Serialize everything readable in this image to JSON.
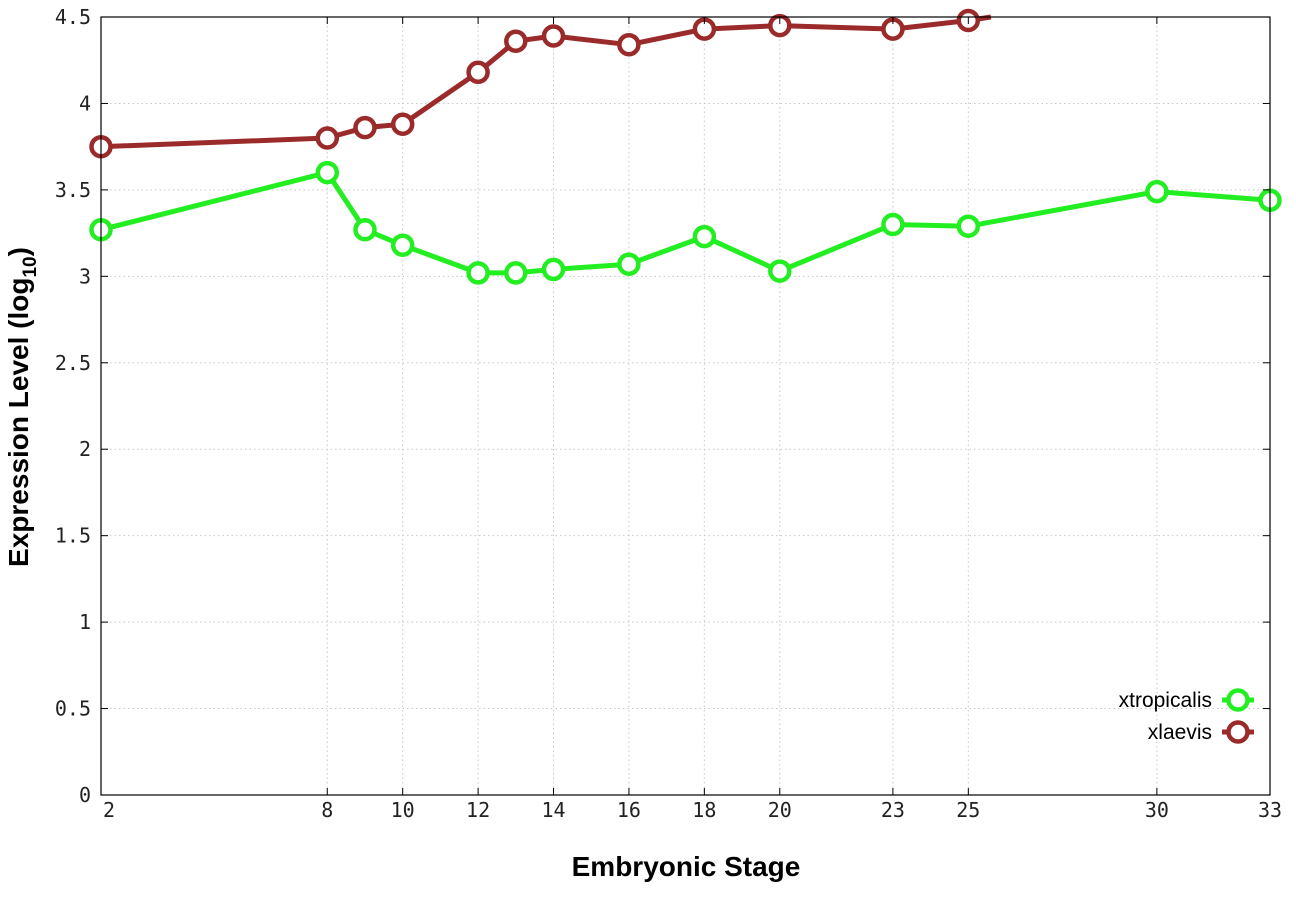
{
  "chart_data": {
    "type": "line",
    "xlabel": "Embryonic Stage",
    "ylabel": {
      "main": "Expression Level (log",
      "subscript": "10",
      "close": ")"
    },
    "x_ticks": [
      2,
      8,
      10,
      12,
      14,
      16,
      18,
      20,
      23,
      25,
      30,
      33
    ],
    "y_ticks": [
      "0",
      "0.5",
      "1",
      "1.5",
      "2",
      "2.5",
      "3",
      "3.5",
      "4",
      "4.5"
    ],
    "xlim": [
      2,
      33
    ],
    "ylim": [
      0,
      4.5
    ],
    "grid": true,
    "legend_position": "bottom-right",
    "series": [
      {
        "name": "xtropicalis",
        "color": "#22ee22",
        "x": [
          2,
          8,
          9,
          10,
          12,
          13,
          14,
          16,
          18,
          20,
          23,
          25,
          30,
          33
        ],
        "y": [
          3.27,
          3.6,
          3.27,
          3.18,
          3.02,
          3.02,
          3.04,
          3.07,
          3.23,
          3.03,
          3.3,
          3.29,
          3.49,
          3.44
        ]
      },
      {
        "name": "xlaevis",
        "color": "#9b2a2a",
        "x": [
          2,
          8,
          9,
          10,
          12,
          13,
          14,
          16,
          18,
          20,
          23,
          25,
          25.6
        ],
        "y": [
          3.75,
          3.8,
          3.86,
          3.88,
          4.18,
          4.36,
          4.39,
          4.34,
          4.43,
          4.45,
          4.43,
          4.48,
          4.5
        ]
      }
    ]
  }
}
